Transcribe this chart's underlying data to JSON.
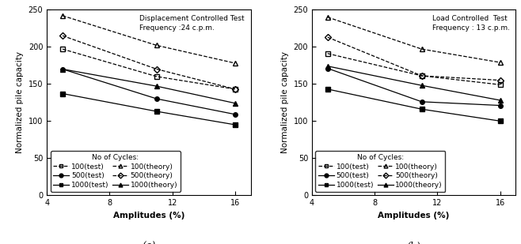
{
  "x_values": [
    5,
    11,
    16
  ],
  "subplot_a": {
    "title": "Displacement Controlled Test\nFrequency :24 c.p.m.",
    "series": {
      "100_test": {
        "y": [
          197,
          160,
          143
        ]
      },
      "500_test": {
        "y": [
          170,
          130,
          109
        ]
      },
      "1000_test": {
        "y": [
          137,
          113,
          95
        ]
      },
      "100_theory": {
        "y": [
          242,
          202,
          178
        ]
      },
      "500_theory": {
        "y": [
          215,
          170,
          143
        ]
      },
      "1000_theory": {
        "y": [
          170,
          147,
          124
        ]
      }
    }
  },
  "subplot_b": {
    "title": "Load Controlled  Test\nFrequency : 13 c.p.m.",
    "series": {
      "100_test": {
        "y": [
          191,
          161,
          149
        ]
      },
      "500_test": {
        "y": [
          171,
          126,
          121
        ]
      },
      "1000_test": {
        "y": [
          143,
          116,
          100
        ]
      },
      "100_theory": {
        "y": [
          240,
          197,
          179
        ]
      },
      "500_theory": {
        "y": [
          213,
          161,
          155
        ]
      },
      "1000_theory": {
        "y": [
          174,
          148,
          128
        ]
      }
    }
  },
  "xlabel": "Amplitudes (%)",
  "ylabel": "Normalized pile capacity",
  "xlim": [
    4,
    17
  ],
  "ylim": [
    0,
    250
  ],
  "xticks": [
    4,
    8,
    12,
    16
  ],
  "yticks": [
    0,
    50,
    100,
    150,
    200,
    250
  ],
  "legend_title": "No of Cycles:",
  "fontsize_tick": 7,
  "fontsize_label": 7.5,
  "fontsize_title": 6.5,
  "fontsize_legend": 6.5,
  "markersize": 4,
  "linewidth": 0.9
}
